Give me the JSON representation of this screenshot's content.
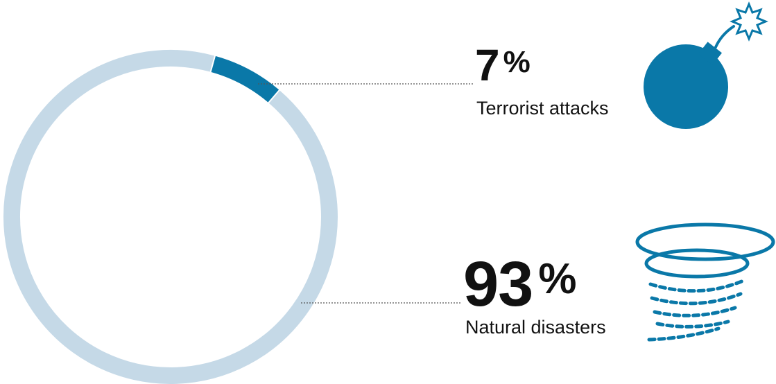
{
  "chart_data": {
    "type": "pie",
    "style": "donut",
    "categories": [
      "Terrorist attacks",
      "Natural disasters"
    ],
    "values": [
      7,
      93
    ],
    "labels": [
      "7%",
      "93%"
    ],
    "unit": "%",
    "colors": {
      "Terrorist attacks": "#0a78a8",
      "Natural disasters": "#c5d9e7"
    },
    "icons": {
      "Terrorist attacks": "bomb-icon",
      "Natural disasters": "tornado-icon"
    },
    "legend": "right"
  },
  "labels": {
    "terrorist": {
      "value": "7",
      "unit": "%",
      "name": "Terrorist attacks"
    },
    "natural": {
      "value": "93",
      "unit": "%",
      "name": "Natural disasters"
    }
  },
  "colors": {
    "accent": "#0a78a8",
    "ring": "#c5d9e7",
    "text": "#111111",
    "leader": "#555555"
  }
}
